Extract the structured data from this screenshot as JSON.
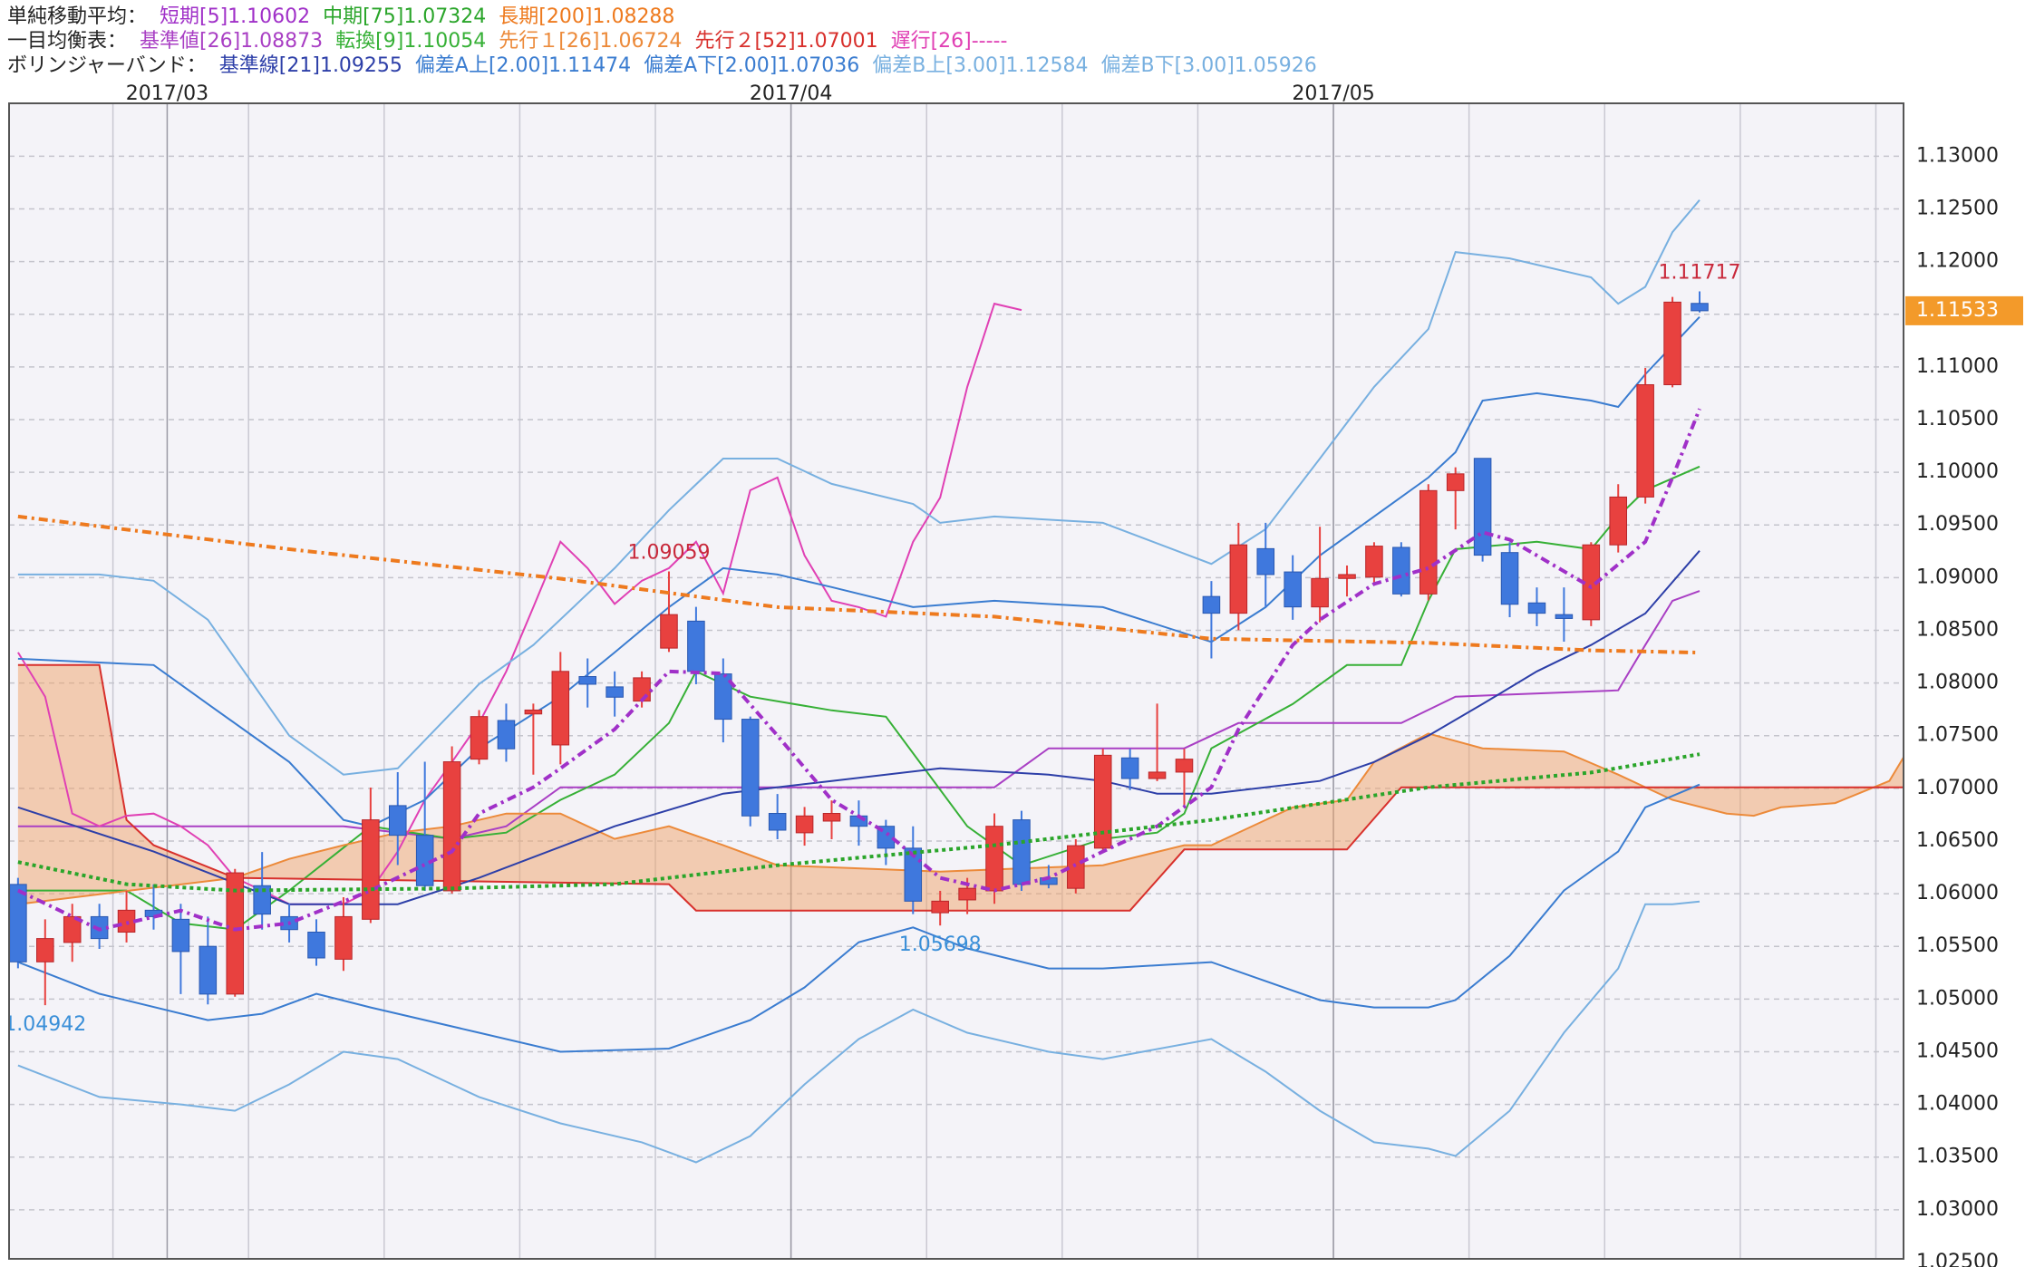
{
  "chart_data": {
    "type": "candlestick",
    "legend_groups": [
      "単純移動平均：",
      "一目均衡表：",
      "ボリンジャーバンド："
    ],
    "up_color": "#e8413f",
    "down_color": "#3f78dd",
    "last_price_color": "#f39a2a",
    "cloud_color": "#f0a46a",
    "grid": true,
    "xlim": [
      -0.33,
      69.52
    ],
    "xticks": [
      {
        "value": 5.5,
        "label": "2017/03"
      },
      {
        "value": 28.5,
        "label": "2017/04"
      },
      {
        "value": 48.5,
        "label": "2017/05"
      }
    ],
    "ylim": [
      1.02534,
      1.13502
    ],
    "yticks": [
      {
        "value": 1.025,
        "label": "1.02500"
      },
      {
        "value": 1.03,
        "label": "1.03000"
      },
      {
        "value": 1.035,
        "label": "1.03500"
      },
      {
        "value": 1.04,
        "label": "1.04000"
      },
      {
        "value": 1.045,
        "label": "1.04500"
      },
      {
        "value": 1.05,
        "label": "1.05000"
      },
      {
        "value": 1.055,
        "label": "1.05500"
      },
      {
        "value": 1.06,
        "label": "1.06000"
      },
      {
        "value": 1.065,
        "label": "1.06500"
      },
      {
        "value": 1.07,
        "label": "1.07000"
      },
      {
        "value": 1.075,
        "label": "1.07500"
      },
      {
        "value": 1.08,
        "label": "1.08000"
      },
      {
        "value": 1.085,
        "label": "1.08500"
      },
      {
        "value": 1.09,
        "label": "1.09000"
      },
      {
        "value": 1.095,
        "label": "1.09500"
      },
      {
        "value": 1.1,
        "label": "1.10000"
      },
      {
        "value": 1.105,
        "label": "1.10500"
      },
      {
        "value": 1.11,
        "label": "1.11000"
      },
      {
        "value": 1.115,
        "label": "1.11500"
      },
      {
        "value": 1.12,
        "label": "1.12000"
      },
      {
        "value": 1.125,
        "label": "1.12500"
      },
      {
        "value": 1.13,
        "label": "1.13000"
      }
    ],
    "open": [
      1.06088,
      1.05353,
      1.05537,
      1.05782,
      1.05635,
      1.05843,
      1.05757,
      1.055,
      1.05047,
      1.06076,
      1.05782,
      1.05635,
      1.05378,
      1.05757,
      1.06836,
      1.06554,
      1.06027,
      1.07277,
      1.07644,
      1.07706,
      1.07412,
      1.08061,
      1.07963,
      1.07828,
      1.08331,
      1.08587,
      1.08086,
      1.07656,
      1.06762,
      1.06578,
      1.06689,
      1.06738,
      1.0664,
      1.06432,
      1.05819,
      1.05941,
      1.06027,
      1.06701,
      1.0615,
      1.06051,
      1.06432,
      1.07289,
      1.07093,
      1.07154,
      1.08821,
      1.08662,
      1.09275,
      1.09054,
      1.08722,
      1.08992,
      1.09005,
      1.09287,
      1.08845,
      1.09826,
      1.10132,
      1.09238,
      1.0876,
      1.08649,
      1.086,
      1.09311,
      1.09765,
      1.10831,
      1.11603
    ],
    "high": [
      1.0615,
      1.05757,
      1.05904,
      1.05904,
      1.06027,
      1.06088,
      1.05904,
      1.05782,
      1.06235,
      1.06395,
      1.05904,
      1.05757,
      1.05966,
      1.07007,
      1.07154,
      1.07252,
      1.07399,
      1.07743,
      1.07804,
      1.07804,
      1.08294,
      1.08233,
      1.0811,
      1.0811,
      1.09059,
      1.08722,
      1.08233,
      1.07681,
      1.06946,
      1.06823,
      1.06885,
      1.06885,
      1.06701,
      1.0664,
      1.06027,
      1.0615,
      1.06762,
      1.06787,
      1.06272,
      1.06517,
      1.07375,
      1.07375,
      1.07804,
      1.07375,
      1.08968,
      1.0952,
      1.0952,
      1.09213,
      1.09483,
      1.09115,
      1.09336,
      1.09336,
      1.09887,
      1.10047,
      1.10132,
      1.09336,
      1.08907,
      1.08907,
      1.09336,
      1.09887,
      1.1099,
      1.11664,
      1.11717
    ],
    "low": [
      1.05292,
      1.04942,
      1.05353,
      1.05476,
      1.05537,
      1.05659,
      1.05047,
      1.04949,
      1.05022,
      1.05659,
      1.05537,
      1.05316,
      1.05267,
      1.05721,
      1.06272,
      1.06027,
      1.06002,
      1.07228,
      1.07252,
      1.0713,
      1.07228,
      1.07767,
      1.07681,
      1.07767,
      1.08294,
      1.07988,
      1.07436,
      1.0664,
      1.06517,
      1.06456,
      1.06517,
      1.06456,
      1.06272,
      1.05806,
      1.05698,
      1.05806,
      1.05904,
      1.06027,
      1.06051,
      1.06002,
      1.06395,
      1.06983,
      1.07069,
      1.06823,
      1.08233,
      1.08502,
      1.08722,
      1.086,
      1.08576,
      1.08821,
      1.08943,
      1.08821,
      1.08784,
      1.09458,
      1.09152,
      1.08625,
      1.08539,
      1.08392,
      1.08539,
      1.09238,
      1.09703,
      1.10806,
      1.11517
    ],
    "close": [
      1.05353,
      1.05574,
      1.05782,
      1.05574,
      1.05843,
      1.05782,
      1.05451,
      1.05047,
      1.06198,
      1.05806,
      1.05659,
      1.0539,
      1.05782,
      1.06701,
      1.06554,
      1.06076,
      1.07252,
      1.07681,
      1.07375,
      1.07743,
      1.0811,
      1.07988,
      1.07865,
      1.08049,
      1.08649,
      1.0811,
      1.07656,
      1.06738,
      1.06603,
      1.06738,
      1.06762,
      1.0664,
      1.06432,
      1.05929,
      1.05929,
      1.06051,
      1.0664,
      1.06088,
      1.06088,
      1.06456,
      1.07314,
      1.07093,
      1.07154,
      1.07277,
      1.08662,
      1.09311,
      1.09029,
      1.08722,
      1.08992,
      1.09029,
      1.09299,
      1.08845,
      1.09826,
      1.09985,
      1.09213,
      1.08747,
      1.08662,
      1.08612,
      1.09311,
      1.09765,
      1.10831,
      1.11615,
      1.11533
    ],
    "high_labels": {
      "24": "1.09059",
      "62": "1.11717"
    },
    "low_labels": {
      "1": "1.04942",
      "34": "1.05698"
    },
    "close_labels": {
      "62": "1.11533"
    },
    "series": [
      {
        "name": "短期[5]1.10602",
        "group": 0,
        "color": "#a030c8",
        "line_style": "dashdot",
        "x": [
          0,
          3,
          6,
          8,
          10,
          13,
          16,
          17,
          19,
          20,
          22,
          24,
          26,
          28,
          30,
          32,
          34,
          36,
          38,
          40,
          42,
          44,
          45,
          47,
          48,
          50,
          52,
          54,
          55,
          56,
          58,
          60,
          61,
          62
        ],
        "values": [
          1.0603,
          1.0566,
          1.0584,
          1.0566,
          1.0572,
          1.0603,
          1.064,
          1.0676,
          1.0701,
          1.0719,
          1.0756,
          1.0811,
          1.0809,
          1.075,
          1.0689,
          1.0658,
          1.0615,
          1.0603,
          1.0615,
          1.064,
          1.0664,
          1.0701,
          1.0756,
          1.0836,
          1.086,
          1.0894,
          1.0909,
          1.0943,
          1.0936,
          1.0921,
          1.0891,
          1.0934,
          1.0995,
          1.10602
        ]
      },
      {
        "name": "中期[75]1.07324",
        "group": 0,
        "color": "#2aa52a",
        "line_style": "dotted",
        "x": [
          0,
          4,
          8,
          16,
          22,
          28,
          36,
          44,
          52,
          58,
          62
        ],
        "values": [
          1.063,
          1.0609,
          1.0603,
          1.0605,
          1.0609,
          1.0627,
          1.0646,
          1.067,
          1.0701,
          1.0715,
          1.07324
        ]
      },
      {
        "name": "長期[200]1.08288",
        "group": 0,
        "color": "#ee7a1e",
        "line_style": "dashdot",
        "x": [
          0,
          10,
          20,
          28,
          36,
          44,
          52,
          58,
          62
        ],
        "values": [
          1.0958,
          1.0927,
          1.0899,
          1.0872,
          1.0863,
          1.0842,
          1.0838,
          1.0831,
          1.08288
        ]
      },
      {
        "name": "基準値[26]1.08873",
        "group": 1,
        "color": "#a93fc4",
        "line_style": "solid",
        "x": [
          0,
          12,
          16,
          18,
          20,
          36,
          38,
          43,
          45,
          51,
          53,
          59,
          60,
          61,
          62
        ],
        "values": [
          1.0664,
          1.0664,
          1.0652,
          1.0664,
          1.0701,
          1.0701,
          1.0738,
          1.0738,
          1.0762,
          1.0762,
          1.0787,
          1.0793,
          1.0836,
          1.0878,
          1.08873
        ]
      },
      {
        "name": "転換[9]1.10054",
        "group": 1,
        "color": "#36b036",
        "line_style": "solid",
        "x": [
          0,
          4,
          6,
          8,
          10,
          13,
          16,
          18,
          20,
          22,
          24,
          25,
          27,
          30,
          32,
          35,
          37,
          40,
          42,
          43,
          44,
          47,
          49,
          51,
          52,
          53,
          56,
          58,
          59,
          60,
          62
        ],
        "values": [
          1.0603,
          1.0603,
          1.0572,
          1.0566,
          1.0603,
          1.0664,
          1.0652,
          1.0658,
          1.0689,
          1.0713,
          1.0762,
          1.0811,
          1.0787,
          1.0774,
          1.0768,
          1.0664,
          1.0627,
          1.0652,
          1.0658,
          1.0676,
          1.0738,
          1.078,
          1.0817,
          1.0817,
          1.0878,
          1.0927,
          1.0934,
          1.0927,
          1.0958,
          1.0983,
          1.10054
        ]
      },
      {
        "name": "先行１[26]1.06724",
        "group": 1,
        "color": "#ec8a3a",
        "line_style": "solid",
        "x": [
          0,
          8,
          10,
          12,
          14,
          16,
          18,
          20,
          22,
          24,
          26,
          28,
          34,
          40,
          43,
          44,
          47,
          49,
          50,
          52,
          54,
          57,
          59,
          61,
          63,
          64,
          65,
          67,
          69,
          70
        ],
        "values": [
          1.059,
          1.0615,
          1.0633,
          1.0646,
          1.0658,
          1.0664,
          1.0676,
          1.0676,
          1.0652,
          1.0664,
          1.0646,
          1.0627,
          1.0621,
          1.0627,
          1.0646,
          1.0646,
          1.0682,
          1.0689,
          1.0725,
          1.0752,
          1.0738,
          1.0735,
          1.0713,
          1.0689,
          1.0676,
          1.0674,
          1.0682,
          1.0686,
          1.0707,
          1.075
        ]
      },
      {
        "name": "先行２[52]1.07001",
        "group": 1,
        "color": "#d8302c",
        "line_style": "solid",
        "x": [
          0,
          3,
          4,
          5,
          8,
          24,
          25,
          41,
          43,
          49,
          51,
          70
        ],
        "values": [
          1.0817,
          1.0817,
          1.067,
          1.0646,
          1.0615,
          1.0609,
          1.0584,
          1.0584,
          1.0642,
          1.0642,
          1.0701,
          1.0701
        ]
      },
      {
        "name": "遅行[26]-----",
        "group": 1,
        "color": "#e040b4",
        "line_style": "solid",
        "x": [
          0,
          1,
          2,
          3,
          4,
          5,
          6,
          7,
          8,
          9,
          10,
          12,
          13,
          14,
          15,
          16,
          17,
          18,
          19,
          20,
          21,
          22,
          23,
          24,
          25,
          26,
          27,
          28,
          29,
          30,
          31,
          32,
          33,
          34,
          35,
          36,
          37
        ],
        "values": [
          1.0829,
          1.0787,
          1.0676,
          1.0664,
          1.0674,
          1.0676,
          1.0664,
          1.0646,
          1.0615,
          1.0603,
          1.059,
          1.059,
          1.0603,
          1.064,
          1.0689,
          1.0725,
          1.0762,
          1.0811,
          1.0872,
          1.0934,
          1.0909,
          1.0875,
          1.0897,
          1.0909,
          1.0934,
          1.0885,
          1.0983,
          1.0995,
          1.0921,
          1.0878,
          1.0872,
          1.0863,
          1.0934,
          1.0976,
          1.1081,
          1.116,
          1.1154
        ]
      },
      {
        "name": "基準線[21]1.09255",
        "group": 2,
        "color": "#2d3fa8",
        "line_style": "solid",
        "x": [
          0,
          5,
          10,
          14,
          17,
          22,
          26,
          30,
          34,
          38,
          40,
          42,
          44,
          48,
          50,
          52,
          54,
          56,
          58,
          60,
          62
        ],
        "values": [
          1.0682,
          1.064,
          1.059,
          1.059,
          1.0615,
          1.0664,
          1.0695,
          1.0707,
          1.0719,
          1.0713,
          1.0707,
          1.0695,
          1.0695,
          1.0707,
          1.0725,
          1.075,
          1.078,
          1.0811,
          1.0836,
          1.0866,
          1.09255
        ]
      },
      {
        "name": "偏差A上[2.00]1.11474",
        "group": 2,
        "color": "#3a7cd0",
        "line_style": "solid",
        "x": [
          0,
          5,
          7,
          10,
          12,
          13,
          15,
          17,
          20,
          22,
          24,
          26,
          28,
          30,
          33,
          36,
          40,
          44,
          46,
          48,
          50,
          52,
          53,
          54,
          56,
          58,
          59,
          60,
          62
        ],
        "values": [
          1.0823,
          1.0817,
          1.078,
          1.0725,
          1.067,
          1.0664,
          1.0689,
          1.0738,
          1.0787,
          1.0829,
          1.0872,
          1.0909,
          1.0903,
          1.0891,
          1.0872,
          1.0878,
          1.0872,
          1.0839,
          1.0872,
          1.0921,
          1.0958,
          1.0995,
          1.1019,
          1.1068,
          1.1075,
          1.1068,
          1.1062,
          1.1093,
          1.11474
        ]
      },
      {
        "name": "偏差A下[2.00]1.07036",
        "group": 2,
        "color": "#3a7cd0",
        "line_style": "solid",
        "x": [
          0,
          3,
          7,
          9,
          11,
          13,
          17,
          20,
          24,
          27,
          29,
          31,
          33,
          35,
          38,
          40,
          44,
          46,
          48,
          50,
          52,
          53,
          55,
          57,
          59,
          60,
          62
        ],
        "values": [
          1.0535,
          1.0505,
          1.048,
          1.0486,
          1.0505,
          1.0492,
          1.0468,
          1.045,
          1.0453,
          1.048,
          1.0511,
          1.0554,
          1.0568,
          1.0548,
          1.0529,
          1.0529,
          1.0535,
          1.0517,
          1.0499,
          1.0492,
          1.0492,
          1.0499,
          1.0541,
          1.0603,
          1.064,
          1.0682,
          1.07036
        ]
      },
      {
        "name": "偏差B上[3.00]1.12584",
        "group": 2,
        "color": "#78b0e0",
        "line_style": "solid",
        "x": [
          0,
          3,
          5,
          7,
          10,
          12,
          14,
          17,
          19,
          22,
          24,
          26,
          28,
          30,
          33,
          34,
          36,
          40,
          44,
          46,
          48,
          50,
          52,
          53,
          55,
          58,
          59,
          60,
          61,
          62
        ],
        "values": [
          1.0903,
          1.0903,
          1.0897,
          1.086,
          1.075,
          1.0713,
          1.0719,
          1.0799,
          1.0836,
          1.0909,
          1.0964,
          1.1013,
          1.1013,
          1.0989,
          1.097,
          1.0952,
          1.0958,
          1.0952,
          1.0913,
          1.0946,
          1.1013,
          1.1081,
          1.1136,
          1.1209,
          1.1203,
          1.1185,
          1.116,
          1.1176,
          1.1228,
          1.12584
        ]
      },
      {
        "name": "偏差B下[3.00]1.05926",
        "group": 2,
        "color": "#78b0e0",
        "line_style": "solid",
        "x": [
          0,
          3,
          6,
          8,
          10,
          12,
          14,
          17,
          20,
          23,
          25,
          27,
          29,
          31,
          33,
          35,
          38,
          40,
          44,
          46,
          48,
          50,
          52,
          53,
          55,
          57,
          59,
          60,
          61,
          62
        ],
        "values": [
          1.0437,
          1.0407,
          1.04,
          1.0394,
          1.0419,
          1.045,
          1.0443,
          1.0407,
          1.0382,
          1.0364,
          1.0345,
          1.037,
          1.0419,
          1.0462,
          1.049,
          1.0468,
          1.045,
          1.0443,
          1.0462,
          1.0431,
          1.0394,
          1.0364,
          1.0358,
          1.0351,
          1.0394,
          1.0468,
          1.0529,
          1.059,
          1.059,
          1.05926
        ]
      }
    ]
  }
}
